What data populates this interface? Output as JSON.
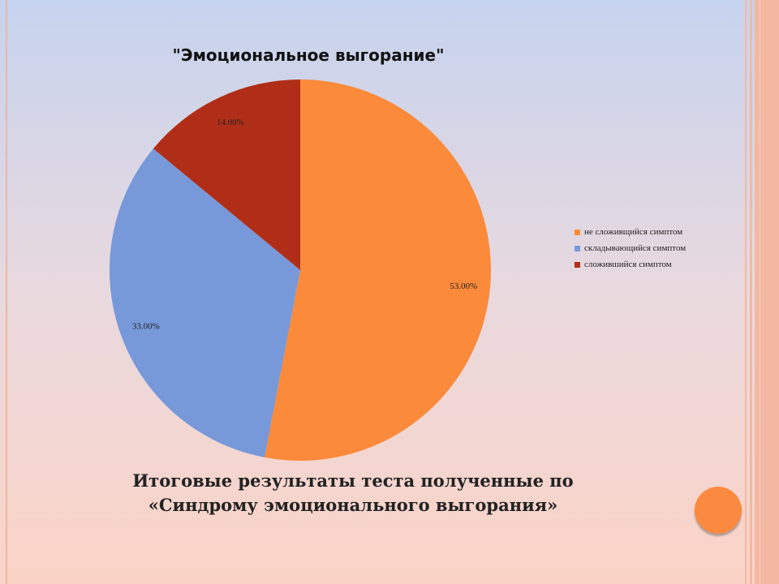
{
  "chart_data": {
    "type": "pie",
    "title": "\"Эмоциональное выгорание\"",
    "series": [
      {
        "name": "не сложивщийся симптом",
        "value": 53.0,
        "label": "53.00%",
        "color": "#fb8a3a"
      },
      {
        "name": "складывающийся симптом",
        "value": 33.0,
        "label": "33.00%",
        "color": "#7799d9"
      },
      {
        "name": "сложившийся симптом",
        "value": 14.0,
        "label": "14.00%",
        "color": "#b02e17"
      }
    ],
    "legend_position": "right",
    "start_angle_deg": 0,
    "direction": "clockwise"
  },
  "caption": {
    "line1": "Итоговые результаты теста полученные по",
    "line2": "«Синдрому эмоционального выгорания»"
  },
  "nav": {
    "color": "#fb8a40"
  }
}
